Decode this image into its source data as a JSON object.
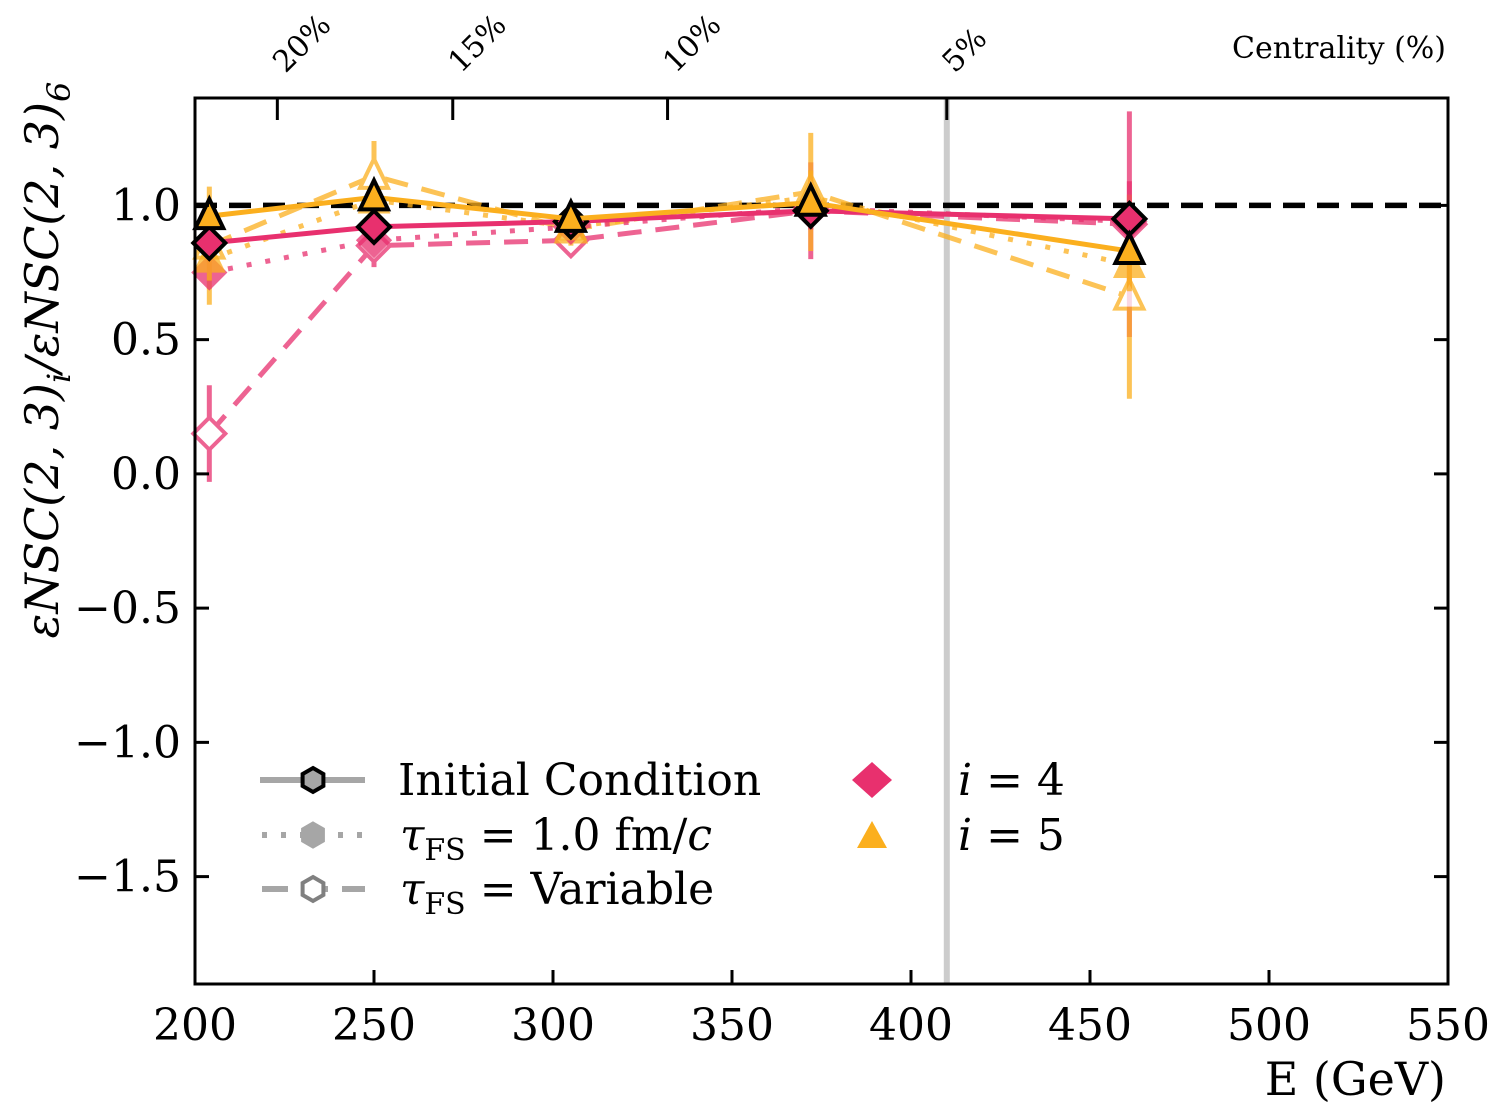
{
  "chart_data": {
    "type": "line",
    "xlabel": "E (GeV)",
    "ylabel": "εNSC(2,3)_i/εNSC(2,3)_6",
    "xlim": [
      200,
      550
    ],
    "ylim": [
      -1.9,
      1.4
    ],
    "x_ticks": [
      200,
      250,
      300,
      350,
      400,
      450,
      500,
      550
    ],
    "x_tick_labels": [
      "200",
      "250",
      "300",
      "350",
      "400",
      "450",
      "500",
      "550"
    ],
    "y_ticks": [
      -1.5,
      -1.0,
      -0.5,
      0.0,
      0.5,
      1.0
    ],
    "y_tick_labels": [
      "−1.5",
      "−1.0",
      "−0.5",
      "0.0",
      "0.5",
      "1.0"
    ],
    "top_axis": {
      "title": "Centrality (%)",
      "ticks": [
        {
          "x": 223,
          "label": "20%"
        },
        {
          "x": 272,
          "label": "15%"
        },
        {
          "x": 332,
          "label": "10%"
        },
        {
          "x": 410,
          "label": "5%"
        }
      ]
    },
    "reference_line": {
      "y": 1.0,
      "style": "dashed",
      "color": "#000000"
    },
    "vertical_line": {
      "x": 410,
      "color": "#cccccc"
    },
    "colors": {
      "i4": "#e8306e",
      "i5": "#fbaf1e"
    },
    "series": [
      {
        "name": "i=4 Initial Condition",
        "color": "#e8306e",
        "marker": "diamond",
        "line": "solid",
        "fill": "filled-outlined",
        "x": [
          204,
          250,
          305,
          372,
          461
        ],
        "y": [
          0.86,
          0.92,
          0.94,
          0.98,
          0.95
        ],
        "err": [
          0.03,
          0.03,
          0.03,
          0.04,
          0.04
        ]
      },
      {
        "name": "i=5 Initial Condition",
        "color": "#fbaf1e",
        "marker": "triangle",
        "line": "solid",
        "fill": "filled-outlined",
        "x": [
          204,
          250,
          305,
          372,
          461
        ],
        "y": [
          0.96,
          1.03,
          0.95,
          1.01,
          0.83
        ],
        "err": [
          0.03,
          0.03,
          0.03,
          0.04,
          0.04
        ]
      },
      {
        "name": "i=4 τFS=1.0 fm/c",
        "color": "#e8306e",
        "marker": "diamond",
        "line": "dotted",
        "fill": "filled-light",
        "x": [
          204,
          250,
          305,
          372,
          461
        ],
        "y": [
          0.75,
          0.87,
          0.92,
          0.99,
          0.94
        ],
        "err": [
          0.06,
          0.04,
          0.04,
          0.08,
          0.15
        ]
      },
      {
        "name": "i=5 τFS=1.0 fm/c",
        "color": "#fbaf1e",
        "marker": "triangle",
        "line": "dotted",
        "fill": "filled-light",
        "x": [
          204,
          250,
          305,
          372,
          461
        ],
        "y": [
          0.8,
          1.02,
          0.92,
          1.03,
          0.78
        ],
        "err": [
          0.08,
          0.05,
          0.04,
          0.1,
          0.1
        ]
      },
      {
        "name": "i=4 τFS=Variable",
        "color": "#e8306e",
        "marker": "diamond",
        "line": "dashed",
        "fill": "open",
        "x": [
          204,
          250,
          305,
          372,
          461
        ],
        "y": [
          0.15,
          0.85,
          0.87,
          0.98,
          0.93
        ],
        "err": [
          0.18,
          0.08,
          0.05,
          0.18,
          0.42
        ]
      },
      {
        "name": "i=5 τFS=Variable",
        "color": "#fbaf1e",
        "marker": "triangle",
        "line": "dashed",
        "fill": "open",
        "x": [
          204,
          250,
          305,
          372,
          461
        ],
        "y": [
          0.85,
          1.11,
          0.91,
          1.05,
          0.66
        ],
        "err": [
          0.22,
          0.13,
          0.06,
          0.22,
          0.38
        ]
      }
    ],
    "legend": {
      "placement": "lower-left",
      "line_styles": [
        "Initial Condition",
        "τFS = 1.0 fm/c",
        "τFS = Variable"
      ],
      "colors": [
        "i = 4",
        "i = 5"
      ]
    }
  },
  "labels": {
    "xlabel": "E (GeV)",
    "top_axis_title": "Centrality (%)",
    "legend_ic": "Initial Condition",
    "legend_tau_prefix": "τ",
    "legend_tau_sub": "FS",
    "legend_tau1_rest": " = 1.0 fm/",
    "legend_tau1_c": "c",
    "legend_tauvar_rest": " = Variable",
    "legend_i_var": "i",
    "legend_i4_rest": " = 4",
    "legend_i5_rest": " = 5"
  }
}
